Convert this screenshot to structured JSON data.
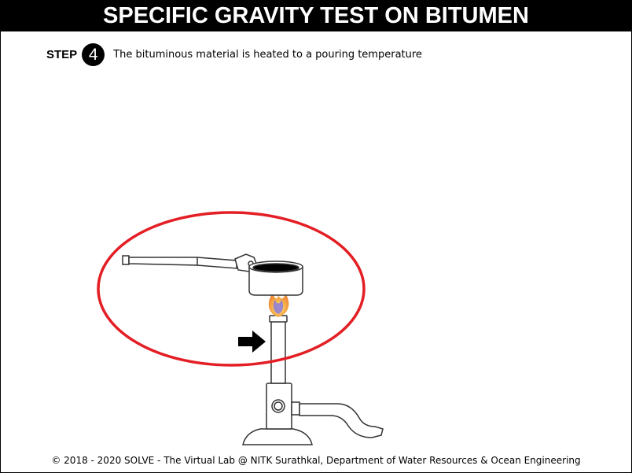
{
  "header": {
    "title": "SPECIFIC GRAVITY TEST ON BITUMEN"
  },
  "step": {
    "label": "STEP",
    "number": "4",
    "instruction": "The bituminous material is heated to a pouring temperature"
  },
  "scene": {
    "highlight_color": "#e31e24",
    "flame_outer_color": "#f5b04a",
    "flame_inner_color": "#8a7ad8",
    "bitumen_color": "#000000",
    "icons": [
      "pan-with-handle-icon",
      "bunsen-burner-icon",
      "flame-icon",
      "arrow-right-icon",
      "highlight-ellipse"
    ]
  },
  "footer": {
    "copyright": "© 2018 - 2020 SOLVE - The Virtual Lab @ NITK Surathkal, Department of Water Resources & Ocean Engineering"
  }
}
